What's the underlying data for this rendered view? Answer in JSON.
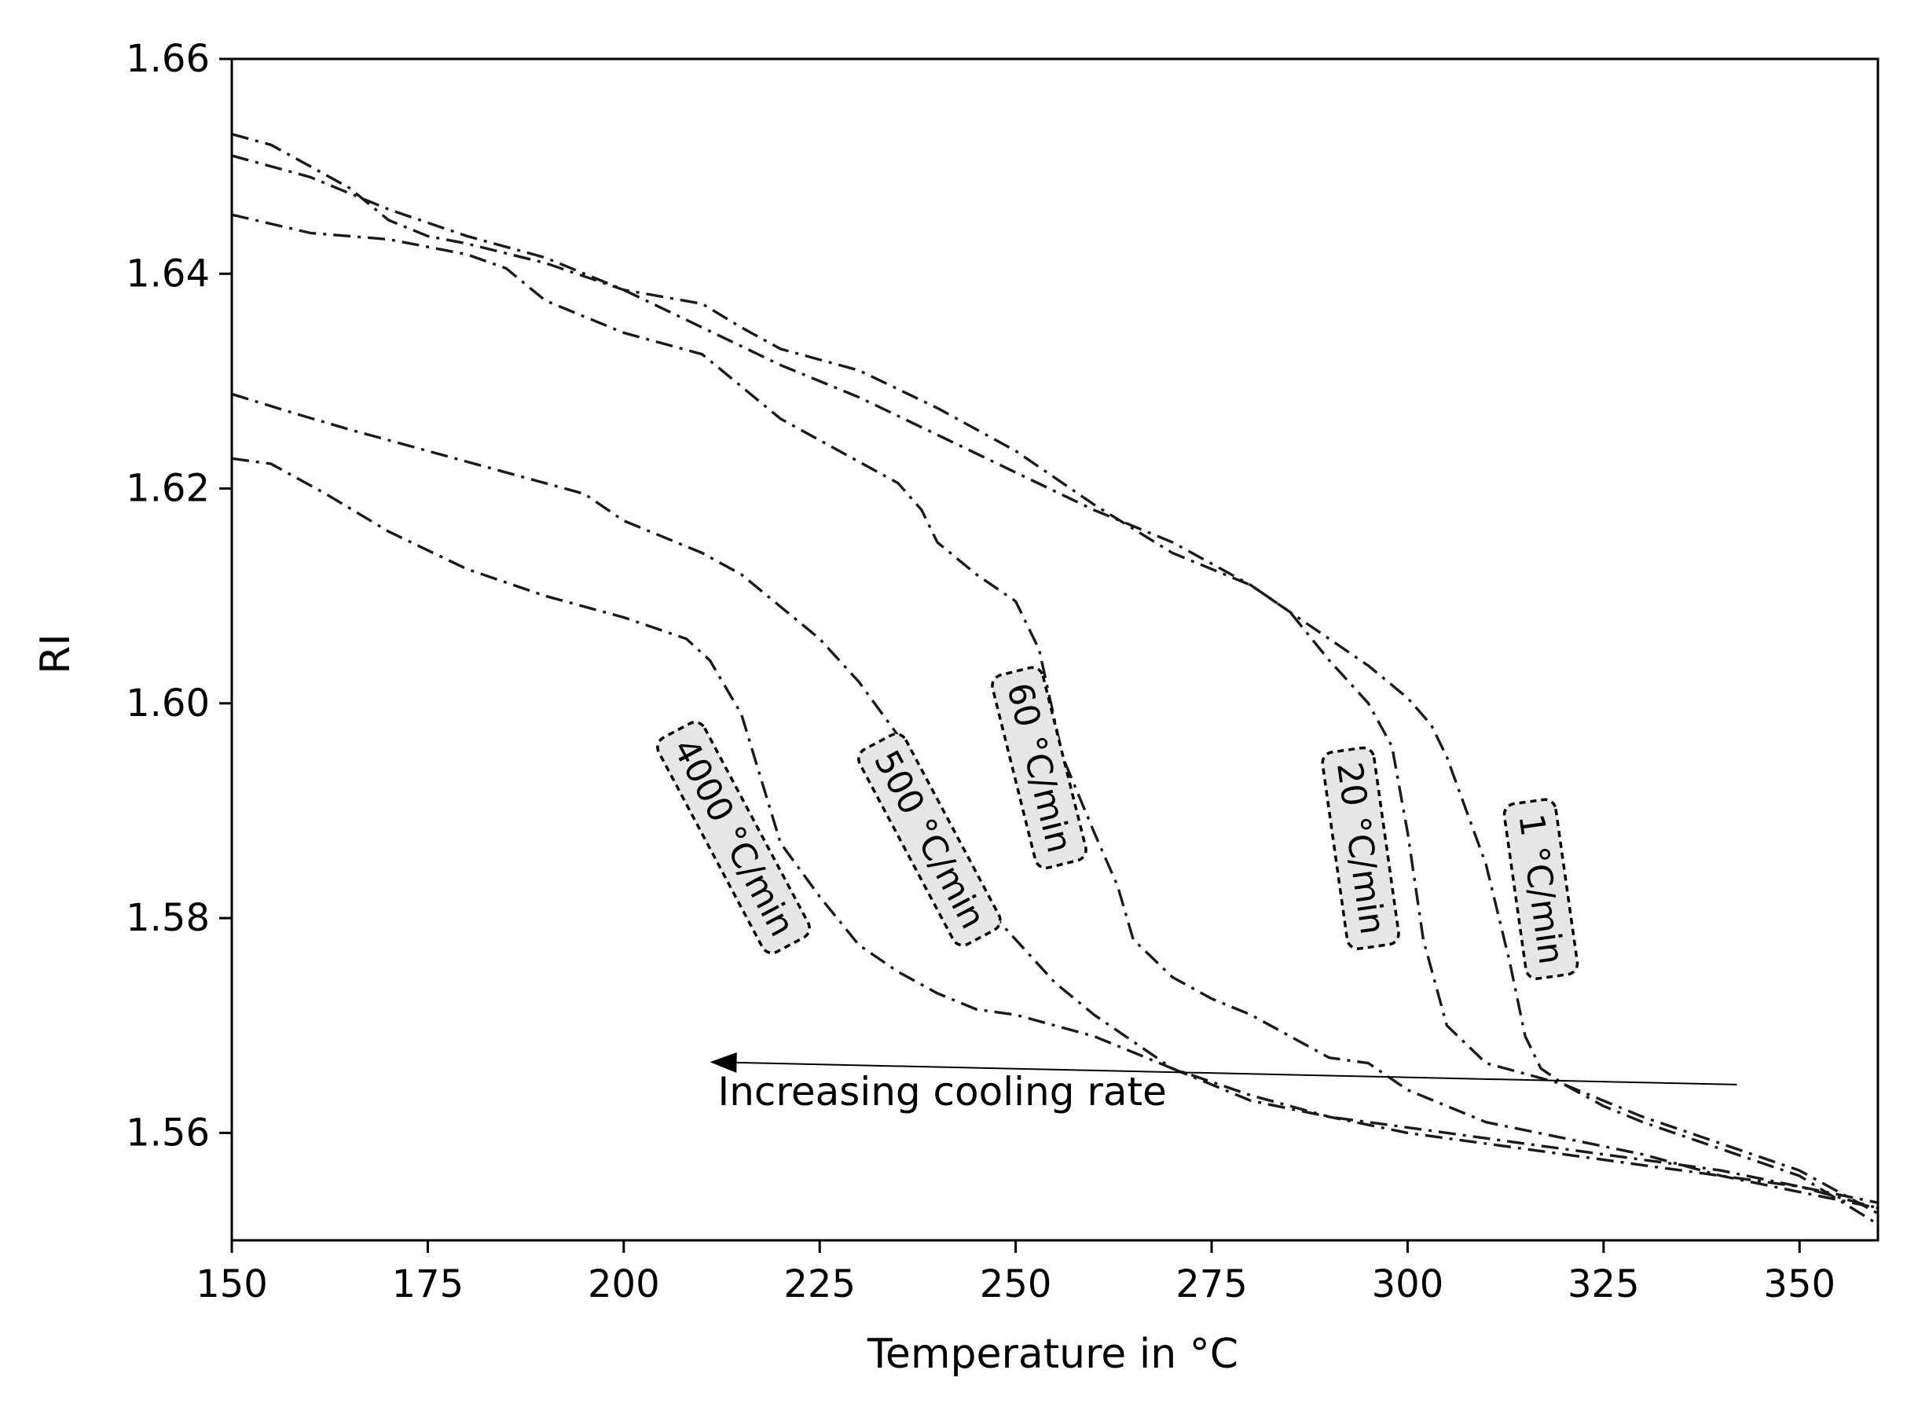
{
  "chart_data": {
    "type": "line",
    "title": "",
    "xlabel": "Temperature in °C",
    "ylabel": "RI",
    "xlim": [
      150,
      360
    ],
    "ylim": [
      1.55,
      1.66
    ],
    "xticks": [
      150,
      175,
      200,
      225,
      250,
      275,
      300,
      325,
      350
    ],
    "xtick_labels": [
      "150",
      "175",
      "200",
      "225",
      "250",
      "275",
      "300",
      "325",
      "350"
    ],
    "yticks": [
      1.56,
      1.58,
      1.6,
      1.62,
      1.64,
      1.66
    ],
    "ytick_labels": [
      "1.56",
      "1.58",
      "1.60",
      "1.62",
      "1.64",
      "1.66"
    ],
    "grid": false,
    "legend": "none",
    "line_color": "#1a1a1a",
    "label_box_color": "#e6e6e6",
    "series": [
      {
        "name": "4000 °C/min",
        "label_at": [
          214,
          1.5875
        ],
        "label_rotation": 62,
        "x": [
          150,
          155,
          162,
          170,
          180,
          190,
          200,
          208,
          211,
          215,
          220,
          225,
          230,
          235,
          240,
          245,
          250,
          260,
          270,
          280,
          290,
          300,
          310,
          320,
          330,
          340,
          350,
          360
        ],
        "y": [
          1.6228,
          1.6223,
          1.6195,
          1.616,
          1.6125,
          1.61,
          1.608,
          1.606,
          1.604,
          1.599,
          1.587,
          1.582,
          1.5775,
          1.575,
          1.573,
          1.5715,
          1.571,
          1.569,
          1.566,
          1.5635,
          1.5615,
          1.56,
          1.559,
          1.558,
          1.557,
          1.556,
          1.555,
          1.5535
        ]
      },
      {
        "name": "500 °C/min",
        "label_at": [
          239,
          1.5873
        ],
        "label_rotation": 62,
        "x": [
          150,
          158,
          165,
          175,
          185,
          195,
          200,
          210,
          215,
          220,
          225,
          230,
          235,
          238,
          240,
          245,
          250,
          255,
          260,
          265,
          270,
          280,
          290,
          300,
          310,
          320,
          330,
          340,
          350,
          360
        ],
        "y": [
          1.6288,
          1.627,
          1.6255,
          1.6235,
          1.6215,
          1.6195,
          1.617,
          1.614,
          1.612,
          1.609,
          1.606,
          1.602,
          1.597,
          1.592,
          1.588,
          1.582,
          1.578,
          1.574,
          1.571,
          1.5685,
          1.566,
          1.563,
          1.5615,
          1.5605,
          1.5595,
          1.5585,
          1.5575,
          1.5565,
          1.555,
          1.553
        ]
      },
      {
        "name": "60 °C/min",
        "label_at": [
          253,
          1.594
        ],
        "label_rotation": 76,
        "x": [
          150,
          160,
          170,
          180,
          185,
          190,
          200,
          210,
          215,
          220,
          225,
          230,
          235,
          238,
          240,
          245,
          250,
          253,
          256,
          260,
          263,
          265,
          270,
          275,
          280,
          285,
          290,
          295,
          300,
          305,
          310,
          320,
          330,
          340,
          350,
          360
        ],
        "y": [
          1.6455,
          1.6438,
          1.6432,
          1.6418,
          1.6405,
          1.6375,
          1.6345,
          1.6325,
          1.6295,
          1.6265,
          1.6245,
          1.6225,
          1.6205,
          1.618,
          1.615,
          1.612,
          1.6095,
          1.605,
          1.595,
          1.588,
          1.583,
          1.578,
          1.5745,
          1.5725,
          1.571,
          1.569,
          1.567,
          1.5665,
          1.564,
          1.5625,
          1.561,
          1.5595,
          1.558,
          1.556,
          1.5545,
          1.553
        ]
      },
      {
        "name": "20 °C/min",
        "label_at": [
          294,
          1.5865
        ],
        "label_rotation": 82,
        "x": [
          150,
          155,
          160,
          165,
          170,
          175,
          180,
          190,
          200,
          210,
          215,
          220,
          225,
          230,
          240,
          250,
          260,
          270,
          280,
          285,
          290,
          295,
          298,
          300,
          302,
          305,
          310,
          315,
          320,
          325,
          330,
          340,
          350,
          360
        ],
        "y": [
          1.653,
          1.652,
          1.65,
          1.648,
          1.645,
          1.6435,
          1.6428,
          1.641,
          1.6385,
          1.6372,
          1.635,
          1.633,
          1.632,
          1.631,
          1.6275,
          1.6235,
          1.6185,
          1.614,
          1.611,
          1.6085,
          1.604,
          1.6,
          1.596,
          1.588,
          1.578,
          1.57,
          1.5665,
          1.5655,
          1.5645,
          1.563,
          1.5615,
          1.559,
          1.5565,
          1.5525
        ]
      },
      {
        "name": "1 °C/min",
        "label_at": [
          317,
          1.5827
        ],
        "label_rotation": 82,
        "x": [
          150,
          160,
          170,
          180,
          190,
          200,
          210,
          220,
          230,
          240,
          250,
          260,
          270,
          280,
          285,
          290,
          295,
          300,
          303,
          305,
          310,
          313,
          315,
          317,
          320,
          325,
          330,
          340,
          350,
          360
        ],
        "y": [
          1.651,
          1.649,
          1.646,
          1.6435,
          1.6415,
          1.6385,
          1.635,
          1.6315,
          1.6285,
          1.625,
          1.6215,
          1.618,
          1.615,
          1.611,
          1.6085,
          1.606,
          1.6035,
          1.6005,
          1.598,
          1.595,
          1.585,
          1.576,
          1.569,
          1.566,
          1.5645,
          1.5625,
          1.561,
          1.5585,
          1.556,
          1.5515
        ]
      }
    ],
    "annotations": [
      {
        "text": "Increasing cooling rate",
        "text_at": [
          212,
          1.5626
        ],
        "arrow_from": [
          342,
          1.5645
        ],
        "arrow_to": [
          211,
          1.5666
        ]
      }
    ]
  }
}
